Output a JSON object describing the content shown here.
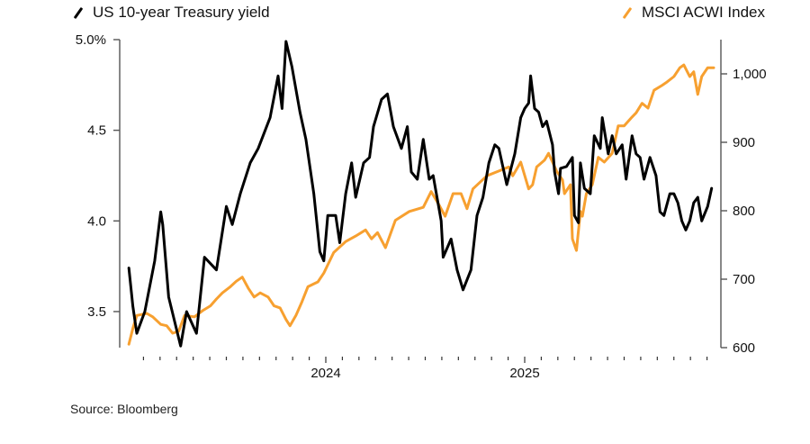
{
  "chart_data": {
    "type": "line",
    "title": "",
    "source": "Source: Bloomberg",
    "x_axis": {
      "range": [
        2023.0,
        2025.95
      ],
      "tick_labels": [
        "2024",
        "2025"
      ],
      "tick_label_values": [
        2024.0,
        2025.0
      ],
      "minor_ticks": "monthly"
    },
    "y_left": {
      "range": [
        3.3,
        5.0
      ],
      "ticks": [
        3.5,
        4.0,
        4.5,
        5.0
      ],
      "tick_labels": [
        "3.5",
        "4.0",
        "4.5",
        "5.0%"
      ]
    },
    "y_right": {
      "range": [
        600,
        1050
      ],
      "ticks": [
        600,
        700,
        800,
        900,
        1000
      ],
      "tick_labels": [
        "600",
        "700",
        "800",
        "900",
        "1,000"
      ]
    },
    "grid": false,
    "legend_placement": "top",
    "series": [
      {
        "name": "US 10-year Treasury yield",
        "axis": "left",
        "color": "#000000",
        "x": [
          2023.01,
          2023.03,
          2023.05,
          2023.09,
          2023.14,
          2023.17,
          2023.18,
          2023.21,
          2023.27,
          2023.3,
          2023.35,
          2023.39,
          2023.45,
          2023.5,
          2023.53,
          2023.57,
          2023.62,
          2023.66,
          2023.72,
          2023.76,
          2023.78,
          2023.8,
          2023.83,
          2023.87,
          2023.9,
          2023.94,
          2023.97,
          2023.99,
          2024.01,
          2024.05,
          2024.07,
          2024.1,
          2024.13,
          2024.15,
          2024.19,
          2024.22,
          2024.24,
          2024.28,
          2024.31,
          2024.34,
          2024.38,
          2024.41,
          2024.43,
          2024.46,
          2024.49,
          2024.52,
          2024.54,
          2024.58,
          2024.59,
          2024.63,
          2024.66,
          2024.69,
          2024.73,
          2024.76,
          2024.79,
          2024.82,
          2024.85,
          2024.87,
          2024.91,
          2024.95,
          2024.98,
          2025.0,
          2025.02,
          2025.03,
          2025.05,
          2025.07,
          2025.09,
          2025.11,
          2025.14,
          2025.15,
          2025.17,
          2025.18,
          2025.21,
          2025.24,
          2025.25,
          2025.27,
          2025.28,
          2025.3,
          2025.33,
          2025.35,
          2025.38,
          2025.39,
          2025.42,
          2025.44,
          2025.46,
          2025.49,
          2025.51,
          2025.54,
          2025.56,
          2025.58,
          2025.6,
          2025.63,
          2025.66,
          2025.68,
          2025.7,
          2025.73,
          2025.75,
          2025.77,
          2025.79,
          2025.81,
          2025.83,
          2025.85,
          2025.87,
          2025.89,
          2025.92,
          2025.94
        ],
        "values": [
          3.74,
          3.53,
          3.38,
          3.5,
          3.78,
          4.05,
          3.98,
          3.58,
          3.31,
          3.5,
          3.38,
          3.8,
          3.73,
          4.08,
          3.98,
          4.15,
          4.32,
          4.4,
          4.57,
          4.8,
          4.62,
          4.99,
          4.85,
          4.6,
          4.45,
          4.15,
          3.83,
          3.78,
          4.03,
          4.03,
          3.88,
          4.15,
          4.32,
          4.13,
          4.32,
          4.35,
          4.52,
          4.67,
          4.7,
          4.52,
          4.4,
          4.52,
          4.27,
          4.23,
          4.45,
          4.23,
          4.25,
          4.0,
          3.8,
          3.9,
          3.73,
          3.62,
          3.73,
          4.03,
          4.13,
          4.32,
          4.42,
          4.4,
          4.2,
          4.37,
          4.57,
          4.62,
          4.65,
          4.8,
          4.62,
          4.6,
          4.52,
          4.55,
          4.42,
          4.27,
          4.15,
          4.29,
          4.3,
          4.35,
          4.03,
          3.99,
          4.32,
          4.18,
          4.15,
          4.47,
          4.4,
          4.57,
          4.37,
          4.47,
          4.37,
          4.42,
          4.23,
          4.47,
          4.37,
          4.35,
          4.23,
          4.35,
          4.25,
          4.05,
          4.03,
          4.15,
          4.15,
          4.1,
          4.0,
          3.95,
          4.0,
          4.1,
          4.13,
          4.0,
          4.08,
          4.18
        ]
      },
      {
        "name": "MSCI ACWI Index",
        "axis": "right",
        "color": "#f7a030",
        "x": [
          2023.01,
          2023.03,
          2023.05,
          2023.1,
          2023.13,
          2023.17,
          2023.2,
          2023.23,
          2023.26,
          2023.29,
          2023.34,
          2023.38,
          2023.42,
          2023.45,
          2023.48,
          2023.52,
          2023.55,
          2023.58,
          2023.61,
          2023.64,
          2023.67,
          2023.71,
          2023.74,
          2023.77,
          2023.8,
          2023.82,
          2023.85,
          2023.88,
          2023.91,
          2023.96,
          2023.99,
          2024.04,
          2024.1,
          2024.15,
          2024.2,
          2024.23,
          2024.26,
          2024.3,
          2024.35,
          2024.42,
          2024.49,
          2024.53,
          2024.57,
          2024.6,
          2024.64,
          2024.68,
          2024.71,
          2024.74,
          2024.81,
          2024.87,
          2024.92,
          2024.94,
          2024.98,
          2025.02,
          2025.04,
          2025.06,
          2025.1,
          2025.12,
          2025.16,
          2025.19,
          2025.2,
          2025.23,
          2025.24,
          2025.26,
          2025.28,
          2025.29,
          2025.31,
          2025.34,
          2025.37,
          2025.4,
          2025.44,
          2025.47,
          2025.5,
          2025.54,
          2025.56,
          2025.59,
          2025.62,
          2025.65,
          2025.69,
          2025.71,
          2025.75,
          2025.78,
          2025.8,
          2025.83,
          2025.85,
          2025.87,
          2025.89,
          2025.92,
          2025.95
        ],
        "values": [
          605,
          628,
          647,
          650,
          645,
          634,
          632,
          621,
          624,
          647,
          645,
          654,
          661,
          671,
          680,
          689,
          697,
          703,
          687,
          674,
          680,
          674,
          661,
          658,
          641,
          632,
          647,
          667,
          689,
          696,
          709,
          739,
          755,
          763,
          772,
          759,
          768,
          746,
          786,
          799,
          805,
          828,
          808,
          792,
          825,
          825,
          803,
          832,
          851,
          858,
          864,
          851,
          871,
          832,
          838,
          864,
          874,
          884,
          858,
          845,
          825,
          838,
          759,
          742,
          799,
          792,
          825,
          838,
          878,
          871,
          884,
          924,
          924,
          937,
          943,
          957,
          950,
          976,
          983,
          987,
          996,
          1009,
          1013,
          996,
          1003,
          970,
          996,
          1009,
          1009
        ]
      }
    ]
  }
}
